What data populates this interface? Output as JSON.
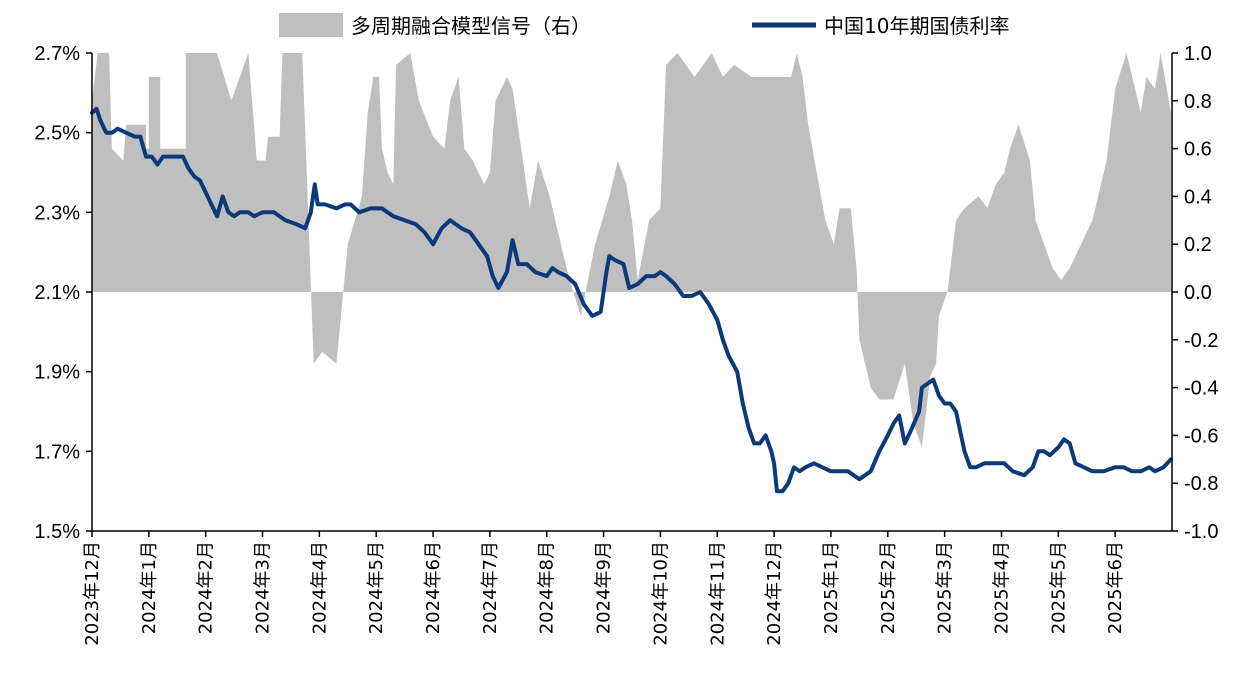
{
  "chart_data": {
    "type": "area+line",
    "legend_position": "top",
    "grid": false,
    "colors": {
      "signal": "#bfbfbf",
      "yield": "#0b3a7a",
      "axis": "#000000"
    },
    "left_axis": {
      "min": 1.5,
      "max": 2.7,
      "ticks": [
        "1.5%",
        "1.7%",
        "1.9%",
        "2.1%",
        "2.3%",
        "2.5%",
        "2.7%"
      ]
    },
    "right_axis": {
      "min": -1.0,
      "max": 1.0,
      "ticks": [
        "-1.0",
        "-0.8",
        "-0.6",
        "-0.4",
        "-0.2",
        "0.0",
        "0.2",
        "0.4",
        "0.6",
        "0.8",
        "1.0"
      ]
    },
    "x_categories": [
      "2023年12月",
      "2024年1月",
      "2024年2月",
      "2024年3月",
      "2024年4月",
      "2024年5月",
      "2024年6月",
      "2024年7月",
      "2024年8月",
      "2024年9月",
      "2024年10月",
      "2024年11月",
      "2024年12月",
      "2025年1月",
      "2025年2月",
      "2025年3月",
      "2025年4月",
      "2025年5月",
      "2025年6月"
    ],
    "series": [
      {
        "name": "多周期融合模型信号（右）",
        "axis": "right",
        "kind": "area",
        "points": [
          [
            0.0,
            0.8
          ],
          [
            0.1,
            1.0
          ],
          [
            0.3,
            1.0
          ],
          [
            0.35,
            0.6
          ],
          [
            0.55,
            0.55
          ],
          [
            0.6,
            0.7
          ],
          [
            0.95,
            0.7
          ],
          [
            0.95,
            0.6
          ],
          [
            1.0,
            0.6
          ],
          [
            1.0,
            0.9
          ],
          [
            1.2,
            0.9
          ],
          [
            1.2,
            0.6
          ],
          [
            1.65,
            0.6
          ],
          [
            1.65,
            1.0
          ],
          [
            2.2,
            1.0
          ],
          [
            2.45,
            0.8
          ],
          [
            2.6,
            0.9
          ],
          [
            2.75,
            1.0
          ],
          [
            2.9,
            0.55
          ],
          [
            3.05,
            0.55
          ],
          [
            3.1,
            0.65
          ],
          [
            3.3,
            0.65
          ],
          [
            3.35,
            1.0
          ],
          [
            3.7,
            1.0
          ],
          [
            3.9,
            -0.3
          ],
          [
            4.05,
            -0.25
          ],
          [
            4.3,
            -0.3
          ],
          [
            4.4,
            -0.05
          ],
          [
            4.5,
            0.2
          ],
          [
            4.75,
            0.4
          ],
          [
            4.85,
            0.75
          ],
          [
            4.95,
            0.9
          ],
          [
            5.05,
            0.9
          ],
          [
            5.1,
            0.6
          ],
          [
            5.2,
            0.5
          ],
          [
            5.3,
            0.45
          ],
          [
            5.35,
            0.95
          ],
          [
            5.6,
            1.0
          ],
          [
            5.75,
            0.8
          ],
          [
            6.0,
            0.65
          ],
          [
            6.2,
            0.6
          ],
          [
            6.3,
            0.8
          ],
          [
            6.45,
            0.9
          ],
          [
            6.55,
            0.6
          ],
          [
            6.7,
            0.55
          ],
          [
            6.9,
            0.45
          ],
          [
            7.0,
            0.5
          ],
          [
            7.1,
            0.8
          ],
          [
            7.3,
            0.9
          ],
          [
            7.4,
            0.85
          ],
          [
            7.55,
            0.6
          ],
          [
            7.7,
            0.35
          ],
          [
            7.85,
            0.55
          ],
          [
            8.05,
            0.4
          ],
          [
            8.25,
            0.2
          ],
          [
            8.4,
            0.05
          ],
          [
            8.6,
            -0.1
          ],
          [
            8.85,
            0.2
          ],
          [
            9.1,
            0.4
          ],
          [
            9.25,
            0.55
          ],
          [
            9.4,
            0.45
          ],
          [
            9.5,
            0.3
          ],
          [
            9.6,
            0.05
          ],
          [
            9.8,
            0.3
          ],
          [
            10.0,
            0.35
          ],
          [
            10.1,
            0.95
          ],
          [
            10.3,
            1.0
          ],
          [
            10.6,
            0.9
          ],
          [
            10.9,
            1.0
          ],
          [
            11.1,
            0.9
          ],
          [
            11.3,
            0.95
          ],
          [
            11.6,
            0.9
          ],
          [
            12.3,
            0.9
          ],
          [
            12.4,
            1.0
          ],
          [
            12.5,
            0.9
          ],
          [
            12.6,
            0.7
          ],
          [
            12.75,
            0.5
          ],
          [
            12.9,
            0.3
          ],
          [
            13.05,
            0.2
          ],
          [
            13.15,
            0.35
          ],
          [
            13.35,
            0.35
          ],
          [
            13.45,
            0.1
          ],
          [
            13.5,
            -0.2
          ],
          [
            13.7,
            -0.4
          ],
          [
            13.85,
            -0.45
          ],
          [
            14.1,
            -0.45
          ],
          [
            14.3,
            -0.3
          ],
          [
            14.45,
            -0.55
          ],
          [
            14.6,
            -0.65
          ],
          [
            14.75,
            -0.35
          ],
          [
            14.85,
            -0.3
          ],
          [
            14.9,
            -0.1
          ],
          [
            15.05,
            0.0
          ],
          [
            15.2,
            0.3
          ],
          [
            15.35,
            0.35
          ],
          [
            15.6,
            0.4
          ],
          [
            15.75,
            0.35
          ],
          [
            15.9,
            0.45
          ],
          [
            16.05,
            0.5
          ],
          [
            16.15,
            0.6
          ],
          [
            16.3,
            0.7
          ],
          [
            16.5,
            0.55
          ],
          [
            16.6,
            0.3
          ],
          [
            16.75,
            0.2
          ],
          [
            16.9,
            0.1
          ],
          [
            17.05,
            0.05
          ],
          [
            17.2,
            0.1
          ],
          [
            17.4,
            0.2
          ],
          [
            17.6,
            0.3
          ],
          [
            17.85,
            0.55
          ],
          [
            18.0,
            0.85
          ],
          [
            18.2,
            1.0
          ],
          [
            18.35,
            0.85
          ],
          [
            18.45,
            0.75
          ],
          [
            18.55,
            0.9
          ],
          [
            18.7,
            0.85
          ],
          [
            18.8,
            1.0
          ],
          [
            18.98,
            0.75
          ]
        ]
      },
      {
        "name": "中国10年期国债利率",
        "axis": "left",
        "kind": "line",
        "points": [
          [
            0.0,
            2.55
          ],
          [
            0.08,
            2.56
          ],
          [
            0.15,
            2.53
          ],
          [
            0.25,
            2.5
          ],
          [
            0.35,
            2.5
          ],
          [
            0.45,
            2.51
          ],
          [
            0.6,
            2.5
          ],
          [
            0.75,
            2.49
          ],
          [
            0.85,
            2.49
          ],
          [
            0.95,
            2.44
          ],
          [
            1.05,
            2.44
          ],
          [
            1.15,
            2.42
          ],
          [
            1.25,
            2.44
          ],
          [
            1.45,
            2.44
          ],
          [
            1.6,
            2.44
          ],
          [
            1.7,
            2.41
          ],
          [
            1.8,
            2.39
          ],
          [
            1.9,
            2.38
          ],
          [
            2.0,
            2.35
          ],
          [
            2.1,
            2.32
          ],
          [
            2.2,
            2.29
          ],
          [
            2.3,
            2.34
          ],
          [
            2.4,
            2.3
          ],
          [
            2.5,
            2.29
          ],
          [
            2.6,
            2.3
          ],
          [
            2.75,
            2.3
          ],
          [
            2.85,
            2.29
          ],
          [
            3.0,
            2.3
          ],
          [
            3.2,
            2.3
          ],
          [
            3.4,
            2.28
          ],
          [
            3.6,
            2.27
          ],
          [
            3.75,
            2.26
          ],
          [
            3.85,
            2.3
          ],
          [
            3.92,
            2.37
          ],
          [
            3.97,
            2.32
          ],
          [
            4.1,
            2.32
          ],
          [
            4.3,
            2.31
          ],
          [
            4.45,
            2.32
          ],
          [
            4.55,
            2.32
          ],
          [
            4.7,
            2.3
          ],
          [
            4.9,
            2.31
          ],
          [
            5.1,
            2.31
          ],
          [
            5.3,
            2.29
          ],
          [
            5.5,
            2.28
          ],
          [
            5.7,
            2.27
          ],
          [
            5.85,
            2.25
          ],
          [
            6.0,
            2.22
          ],
          [
            6.15,
            2.26
          ],
          [
            6.3,
            2.28
          ],
          [
            6.4,
            2.27
          ],
          [
            6.5,
            2.26
          ],
          [
            6.65,
            2.25
          ],
          [
            6.75,
            2.23
          ],
          [
            6.85,
            2.21
          ],
          [
            6.95,
            2.19
          ],
          [
            7.05,
            2.14
          ],
          [
            7.15,
            2.11
          ],
          [
            7.3,
            2.15
          ],
          [
            7.4,
            2.23
          ],
          [
            7.5,
            2.17
          ],
          [
            7.65,
            2.17
          ],
          [
            7.8,
            2.15
          ],
          [
            8.0,
            2.14
          ],
          [
            8.1,
            2.16
          ],
          [
            8.2,
            2.15
          ],
          [
            8.35,
            2.14
          ],
          [
            8.5,
            2.12
          ],
          [
            8.65,
            2.07
          ],
          [
            8.8,
            2.04
          ],
          [
            8.95,
            2.05
          ],
          [
            9.05,
            2.15
          ],
          [
            9.1,
            2.19
          ],
          [
            9.2,
            2.18
          ],
          [
            9.35,
            2.17
          ],
          [
            9.45,
            2.11
          ],
          [
            9.6,
            2.12
          ],
          [
            9.75,
            2.14
          ],
          [
            9.9,
            2.14
          ],
          [
            10.0,
            2.15
          ],
          [
            10.1,
            2.14
          ],
          [
            10.25,
            2.12
          ],
          [
            10.4,
            2.09
          ],
          [
            10.55,
            2.09
          ],
          [
            10.7,
            2.1
          ],
          [
            10.85,
            2.07
          ],
          [
            11.0,
            2.03
          ],
          [
            11.1,
            1.98
          ],
          [
            11.2,
            1.94
          ],
          [
            11.35,
            1.9
          ],
          [
            11.45,
            1.82
          ],
          [
            11.55,
            1.76
          ],
          [
            11.65,
            1.72
          ],
          [
            11.75,
            1.72
          ],
          [
            11.85,
            1.74
          ],
          [
            11.95,
            1.7
          ],
          [
            12.0,
            1.67
          ],
          [
            12.05,
            1.6
          ],
          [
            12.15,
            1.6
          ],
          [
            12.25,
            1.62
          ],
          [
            12.35,
            1.66
          ],
          [
            12.45,
            1.65
          ],
          [
            12.55,
            1.66
          ],
          [
            12.7,
            1.67
          ],
          [
            12.85,
            1.66
          ],
          [
            13.0,
            1.65
          ],
          [
            13.3,
            1.65
          ],
          [
            13.5,
            1.63
          ],
          [
            13.7,
            1.65
          ],
          [
            13.85,
            1.7
          ],
          [
            14.0,
            1.74
          ],
          [
            14.1,
            1.77
          ],
          [
            14.2,
            1.79
          ],
          [
            14.3,
            1.72
          ],
          [
            14.4,
            1.75
          ],
          [
            14.55,
            1.8
          ],
          [
            14.6,
            1.86
          ],
          [
            14.7,
            1.87
          ],
          [
            14.8,
            1.88
          ],
          [
            14.9,
            1.84
          ],
          [
            15.0,
            1.82
          ],
          [
            15.1,
            1.82
          ],
          [
            15.2,
            1.8
          ],
          [
            15.35,
            1.7
          ],
          [
            15.45,
            1.66
          ],
          [
            15.55,
            1.66
          ],
          [
            15.7,
            1.67
          ],
          [
            15.9,
            1.67
          ],
          [
            16.05,
            1.67
          ],
          [
            16.2,
            1.65
          ],
          [
            16.4,
            1.64
          ],
          [
            16.55,
            1.66
          ],
          [
            16.65,
            1.7
          ],
          [
            16.75,
            1.7
          ],
          [
            16.85,
            1.69
          ],
          [
            17.0,
            1.71
          ],
          [
            17.1,
            1.73
          ],
          [
            17.2,
            1.72
          ],
          [
            17.3,
            1.67
          ],
          [
            17.45,
            1.66
          ],
          [
            17.6,
            1.65
          ],
          [
            17.8,
            1.65
          ],
          [
            18.0,
            1.66
          ],
          [
            18.15,
            1.66
          ],
          [
            18.3,
            1.65
          ],
          [
            18.45,
            1.65
          ],
          [
            18.6,
            1.66
          ],
          [
            18.7,
            1.65
          ],
          [
            18.85,
            1.66
          ],
          [
            18.98,
            1.68
          ]
        ]
      }
    ]
  }
}
